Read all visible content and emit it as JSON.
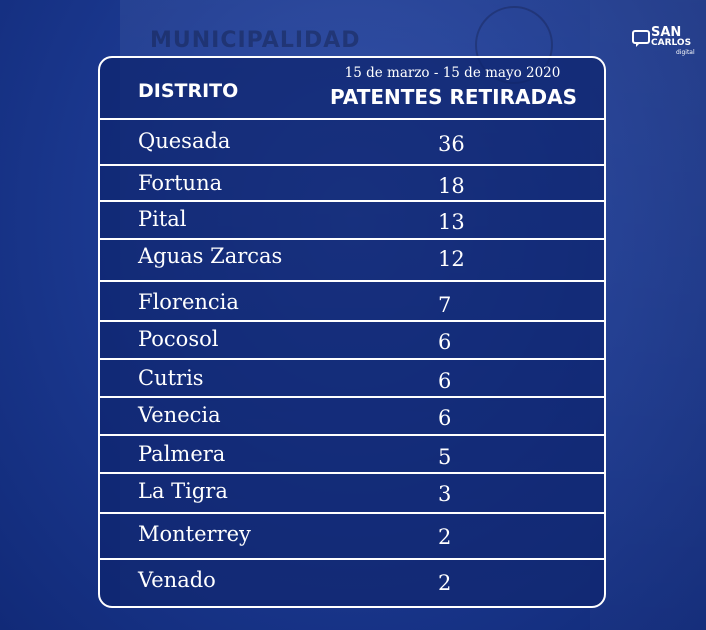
{
  "background": {
    "sign_text": "MUNICIPALIDAD"
  },
  "logo": {
    "line1": "SAN",
    "line2": "CARLOS",
    "line3": "digital"
  },
  "table": {
    "header": {
      "district_label": "DISTRITO",
      "date_range": "15 de marzo - 15 de mayo 2020",
      "value_label": "PATENTES RETIRADAS"
    },
    "rows": [
      {
        "district": "Quesada",
        "value": "36"
      },
      {
        "district": "Fortuna",
        "value": "18"
      },
      {
        "district": "Pital",
        "value": "13"
      },
      {
        "district": "Aguas Zarcas",
        "value": "12"
      },
      {
        "district": "Florencia",
        "value": "7"
      },
      {
        "district": "Pocosol",
        "value": "6"
      },
      {
        "district": "Cutris",
        "value": "6"
      },
      {
        "district": "Venecia",
        "value": "6"
      },
      {
        "district": "Palmera",
        "value": "5"
      },
      {
        "district": "La Tigra",
        "value": "3"
      },
      {
        "district": "Monterrey",
        "value": "2"
      },
      {
        "district": "Venado",
        "value": "2"
      }
    ]
  },
  "colors": {
    "background": "#1c3a92",
    "text": "#ffffff",
    "rule": "#ffffff"
  }
}
